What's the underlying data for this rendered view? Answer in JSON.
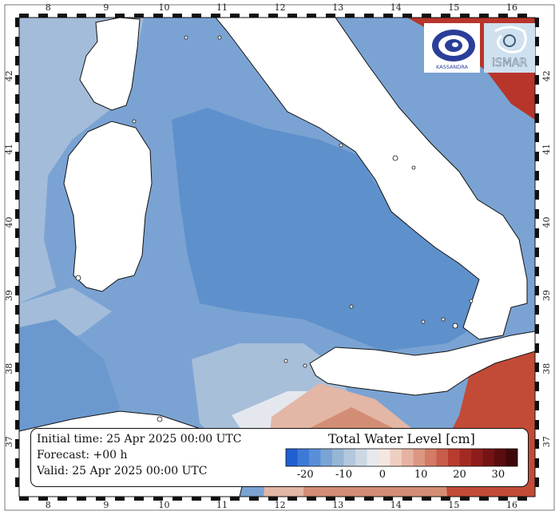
{
  "axes": {
    "lon_ticks": [
      "8",
      "9",
      "10",
      "11",
      "12",
      "13",
      "14",
      "15",
      "16"
    ],
    "lat_ticks": [
      "37",
      "38",
      "39",
      "40",
      "41",
      "42"
    ]
  },
  "info": {
    "initial_time": "Initial time: 25 Apr 2025 00:00 UTC",
    "forecast": "Forecast: +00 h",
    "valid": "Valid: 25 Apr 2025 00:00 UTC"
  },
  "colorbar": {
    "title": "Total Water Level [cm]",
    "ticks": [
      "-20",
      "-10",
      "0",
      "10",
      "20",
      "30"
    ],
    "min": -25,
    "max": 35,
    "colors": [
      "#1f5fd1",
      "#3d7ad8",
      "#5a8fd8",
      "#7aa4d6",
      "#96b6d6",
      "#b3c8dd",
      "#ccd8e4",
      "#e6e9ed",
      "#f5e6e0",
      "#efcfc2",
      "#e6b3a2",
      "#dc9783",
      "#d27b66",
      "#c75d4a",
      "#b83b2e",
      "#a32a22",
      "#8e1c1c",
      "#741313",
      "#5a0d0d",
      "#3f0808"
    ]
  },
  "logos": {
    "left": "KASSANDRA",
    "right": "ISMAR"
  },
  "colors": {
    "land": "#ffffff",
    "sea_deep_low": "#5b8fcb",
    "sea_mid": "#7aa3d3",
    "sea_light": "#a9c0da",
    "positive_high": "#c0392b"
  }
}
